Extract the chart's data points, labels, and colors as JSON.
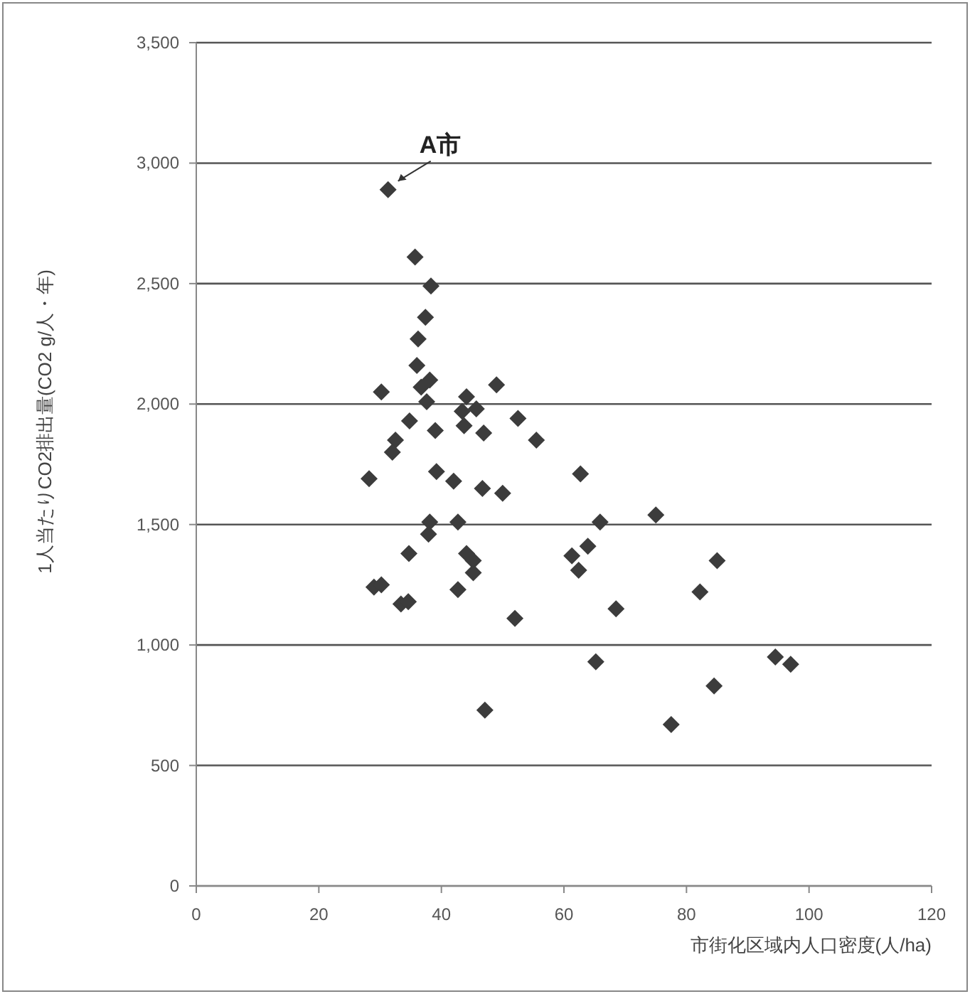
{
  "chart_data": {
    "type": "scatter",
    "xlabel": "市街化区域内人口密度(人/ha)",
    "ylabel": "1人当たりCO2排出量(CO2 g/人・年)",
    "marker": "diamond",
    "grid": "y",
    "xlim": [
      0,
      120
    ],
    "xticks": [
      0,
      20,
      40,
      60,
      80,
      100,
      120
    ],
    "ylim": [
      0,
      3500
    ],
    "yticks": [
      0,
      500,
      {
        "value": 1000,
        "label": "1,000"
      },
      {
        "value": 1500,
        "label": "1,500"
      },
      {
        "value": 2000,
        "label": "2,000"
      },
      {
        "value": 2500,
        "label": "2,500"
      },
      {
        "value": 3000,
        "label": "3,000"
      },
      {
        "value": 3500,
        "label": "3,500"
      }
    ],
    "annotations": [
      {
        "text": "A市",
        "x": 31.3,
        "y": 2890
      }
    ],
    "series": [
      {
        "color": "#3c3c3c",
        "x": [
          31.3,
          35.7,
          38.3,
          37.4,
          36.2,
          36.0,
          36.7,
          38.1,
          37.6,
          39.0,
          30.2,
          49.0,
          44.1,
          43.4,
          45.7,
          43.7,
          46.9,
          52.5,
          55.5,
          34.8,
          32.5,
          32.0,
          28.2,
          39.2,
          42.0,
          46.7,
          50.0,
          62.7,
          38.1,
          42.7,
          37.9,
          65.9,
          34.7,
          44.1,
          45.2,
          45.2,
          61.3,
          63.9,
          62.4,
          29.0,
          30.2,
          33.4,
          34.6,
          42.7,
          52.0,
          68.5,
          65.2,
          47.1,
          75.0,
          85.0,
          82.2,
          94.5,
          97.0,
          84.5,
          77.5
        ],
        "values": [
          2890,
          2610,
          2490,
          2360,
          2270,
          2160,
          2070,
          2100,
          2010,
          1890,
          2050,
          2080,
          2030,
          1970,
          1980,
          1910,
          1880,
          1940,
          1850,
          1930,
          1850,
          1800,
          1690,
          1720,
          1680,
          1650,
          1630,
          1710,
          1510,
          1510,
          1460,
          1510,
          1380,
          1380,
          1350,
          1300,
          1370,
          1410,
          1310,
          1240,
          1250,
          1170,
          1180,
          1230,
          1110,
          1150,
          930,
          730,
          1540,
          1350,
          1220,
          950,
          920,
          830,
          670
        ]
      }
    ]
  }
}
